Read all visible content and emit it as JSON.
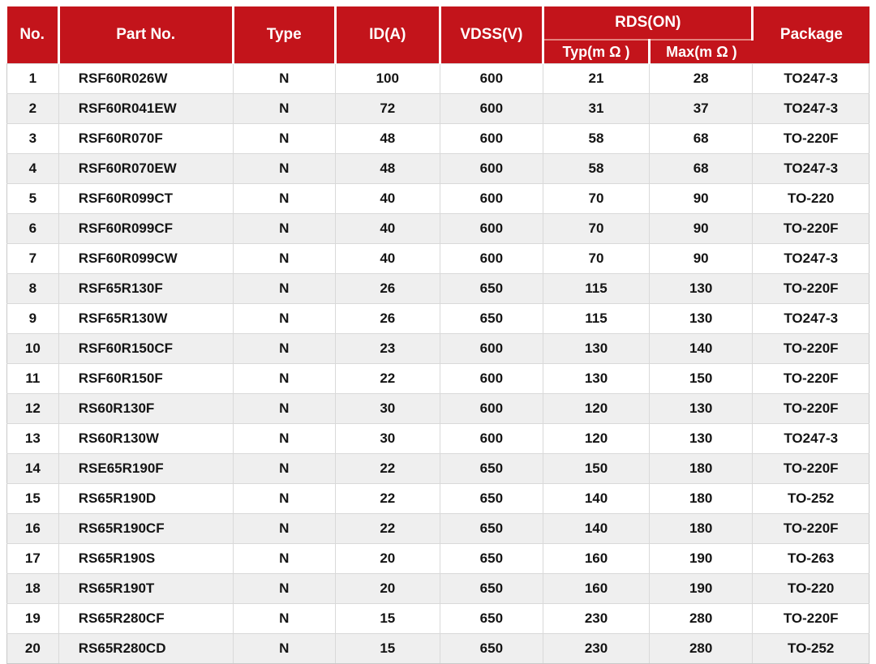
{
  "colors": {
    "header_bg": "#c3141b",
    "header_text": "#ffffff",
    "row_alt_bg": "#efefef",
    "row_bg": "#ffffff",
    "body_text": "#141414",
    "grid_line": "#d9d9d9",
    "header_divider": "#e4827d"
  },
  "table": {
    "headers": {
      "no": "No.",
      "part_no": "Part No.",
      "type": "Type",
      "id": "ID(A)",
      "vdss": "VDSS(V)",
      "rds_on": "RDS(ON)",
      "typ": "Typ(m Ω )",
      "max": "Max(m Ω )",
      "package": "Package"
    },
    "column_order": [
      "no",
      "part_no",
      "type",
      "id",
      "vdss",
      "typ",
      "max",
      "package"
    ],
    "rows": [
      {
        "no": "1",
        "part_no": "RSF60R026W",
        "type": "N",
        "id": "100",
        "vdss": "600",
        "typ": "21",
        "max": "28",
        "package": "TO247-3"
      },
      {
        "no": "2",
        "part_no": "RSF60R041EW",
        "type": "N",
        "id": "72",
        "vdss": "600",
        "typ": "31",
        "max": "37",
        "package": "TO247-3"
      },
      {
        "no": "3",
        "part_no": "RSF60R070F",
        "type": "N",
        "id": "48",
        "vdss": "600",
        "typ": "58",
        "max": "68",
        "package": "TO-220F"
      },
      {
        "no": "4",
        "part_no": "RSF60R070EW",
        "type": "N",
        "id": "48",
        "vdss": "600",
        "typ": "58",
        "max": "68",
        "package": "TO247-3"
      },
      {
        "no": "5",
        "part_no": "RSF60R099CT",
        "type": "N",
        "id": "40",
        "vdss": "600",
        "typ": "70",
        "max": "90",
        "package": "TO-220"
      },
      {
        "no": "6",
        "part_no": "RSF60R099CF",
        "type": "N",
        "id": "40",
        "vdss": "600",
        "typ": "70",
        "max": "90",
        "package": "TO-220F"
      },
      {
        "no": "7",
        "part_no": "RSF60R099CW",
        "type": "N",
        "id": "40",
        "vdss": "600",
        "typ": "70",
        "max": "90",
        "package": "TO247-3"
      },
      {
        "no": "8",
        "part_no": "RSF65R130F",
        "type": "N",
        "id": "26",
        "vdss": "650",
        "typ": "115",
        "max": "130",
        "package": "TO-220F"
      },
      {
        "no": "9",
        "part_no": "RSF65R130W",
        "type": "N",
        "id": "26",
        "vdss": "650",
        "typ": "115",
        "max": "130",
        "package": "TO247-3"
      },
      {
        "no": "10",
        "part_no": "RSF60R150CF",
        "type": "N",
        "id": "23",
        "vdss": "600",
        "typ": "130",
        "max": "140",
        "package": "TO-220F"
      },
      {
        "no": "11",
        "part_no": "RSF60R150F",
        "type": "N",
        "id": "22",
        "vdss": "600",
        "typ": "130",
        "max": "150",
        "package": "TO-220F"
      },
      {
        "no": "12",
        "part_no": "RS60R130F",
        "type": "N",
        "id": "30",
        "vdss": "600",
        "typ": "120",
        "max": "130",
        "package": "TO-220F"
      },
      {
        "no": "13",
        "part_no": "RS60R130W",
        "type": "N",
        "id": "30",
        "vdss": "600",
        "typ": "120",
        "max": "130",
        "package": "TO247-3"
      },
      {
        "no": "14",
        "part_no": "RSE65R190F",
        "type": "N",
        "id": "22",
        "vdss": "650",
        "typ": "150",
        "max": "180",
        "package": "TO-220F"
      },
      {
        "no": "15",
        "part_no": "RS65R190D",
        "type": "N",
        "id": "22",
        "vdss": "650",
        "typ": "140",
        "max": "180",
        "package": "TO-252"
      },
      {
        "no": "16",
        "part_no": "RS65R190CF",
        "type": "N",
        "id": "22",
        "vdss": "650",
        "typ": "140",
        "max": "180",
        "package": "TO-220F"
      },
      {
        "no": "17",
        "part_no": "RS65R190S",
        "type": "N",
        "id": "20",
        "vdss": "650",
        "typ": "160",
        "max": "190",
        "package": "TO-263"
      },
      {
        "no": "18",
        "part_no": "RS65R190T",
        "type": "N",
        "id": "20",
        "vdss": "650",
        "typ": "160",
        "max": "190",
        "package": "TO-220"
      },
      {
        "no": "19",
        "part_no": "RS65R280CF",
        "type": "N",
        "id": "15",
        "vdss": "650",
        "typ": "230",
        "max": "280",
        "package": "TO-220F"
      },
      {
        "no": "20",
        "part_no": "RS65R280CD",
        "type": "N",
        "id": "15",
        "vdss": "650",
        "typ": "230",
        "max": "280",
        "package": "TO-252"
      }
    ]
  }
}
